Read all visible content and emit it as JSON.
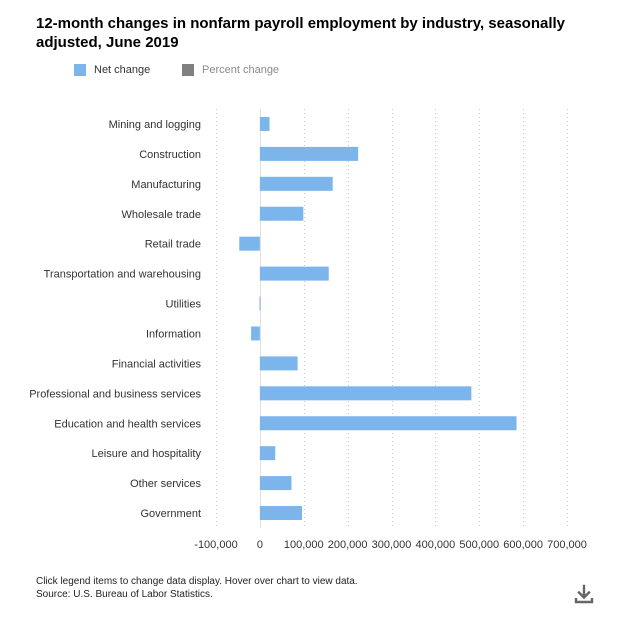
{
  "title": "12-month changes in nonfarm payroll employment by industry, seasonally adjusted, June 2019",
  "legend": {
    "net_change": "Net change",
    "percent_change": "Percent change"
  },
  "footer": {
    "note": "Click legend items to change data display. Hover over chart to view data.",
    "source": "Source: U.S. Bureau of Labor Statistics."
  },
  "colors": {
    "net_change": "#7cb5ec",
    "percent_change": "#808080",
    "axis_text": "#333333"
  },
  "icons": {
    "download": "download-icon"
  },
  "chart_data": {
    "type": "bar",
    "orientation": "horizontal",
    "title": "12-month changes in nonfarm payroll employment by industry, seasonally adjusted, June 2019",
    "categories": [
      "Mining and logging",
      "Construction",
      "Manufacturing",
      "Wholesale trade",
      "Retail trade",
      "Transportation and warehousing",
      "Utilities",
      "Information",
      "Financial activities",
      "Professional and business services",
      "Education and health services",
      "Leisure and hospitality",
      "Other services",
      "Government"
    ],
    "series": [
      {
        "name": "Net change",
        "values": [
          22000,
          224000,
          166000,
          99000,
          -47000,
          157000,
          -1000,
          -20000,
          86000,
          482000,
          585000,
          35000,
          72000,
          96000
        ]
      }
    ],
    "xlim": [
      -100000,
      700000
    ],
    "xticks": [
      -100000,
      0,
      100000,
      200000,
      300000,
      400000,
      500000,
      600000,
      700000
    ],
    "xtick_labels": [
      "-100,000",
      "0",
      "100,000",
      "200,000",
      "300,000",
      "400,000",
      "500,000",
      "600,000",
      "700,000"
    ],
    "xlabel": "",
    "ylabel": "",
    "grid": "vertical dotted",
    "legend_position": "top-left"
  }
}
